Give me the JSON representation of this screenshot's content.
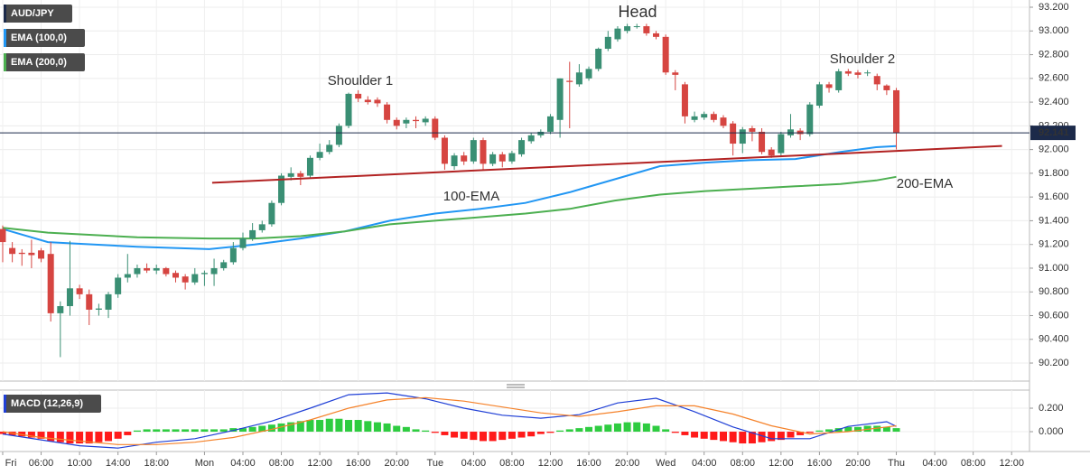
{
  "chart_data": [
    {
      "type": "candlestick",
      "title": "AUD/JPY",
      "up_color": "#3a8f74",
      "down_color": "#d64541",
      "x": [
        0,
        1,
        2,
        3,
        4,
        5,
        6,
        7,
        8,
        9,
        10,
        11,
        12,
        13,
        14,
        15,
        16,
        17,
        18,
        19,
        20,
        21,
        22,
        23,
        24,
        25,
        26,
        27,
        28,
        29,
        30,
        31,
        32,
        33,
        34,
        35,
        36,
        37,
        38,
        39,
        40,
        41,
        42,
        43,
        44,
        45,
        46,
        47,
        48,
        49,
        50,
        51,
        52,
        53,
        54,
        55,
        56,
        57,
        58,
        59,
        60,
        61,
        62,
        63,
        64,
        65,
        66,
        67,
        68,
        69,
        70,
        71,
        72,
        73,
        74,
        75,
        76,
        77,
        78,
        79,
        80,
        81,
        82,
        83,
        84,
        85,
        86,
        87,
        88,
        89,
        90,
        91,
        92,
        93
      ],
      "open": [
        91.33,
        91.17,
        91.13,
        91.13,
        91.15,
        91.12,
        90.62,
        90.68,
        90.83,
        90.78,
        90.65,
        90.65,
        90.78,
        90.92,
        90.95,
        91.0,
        90.98,
        91.0,
        90.96,
        90.93,
        90.88,
        90.95,
        90.95,
        91.0,
        91.05,
        91.17,
        91.25,
        91.32,
        91.37,
        91.55,
        91.77,
        91.8,
        91.78,
        91.93,
        91.98,
        92.04,
        92.2,
        92.47,
        92.42,
        92.42,
        92.38,
        92.25,
        92.22,
        92.25,
        92.23,
        92.26,
        92.1,
        91.86,
        91.95,
        91.9,
        92.08,
        91.88,
        91.96,
        91.9,
        91.96,
        92.07,
        92.12,
        92.15,
        92.25,
        92.58,
        92.55,
        92.6,
        92.68,
        92.85,
        92.93,
        93.0,
        93.04,
        93.04,
        92.98,
        92.95,
        92.65,
        92.55,
        92.25,
        92.27,
        92.3,
        92.27,
        92.22,
        92.05,
        92.18,
        92.15,
        92.0,
        91.97,
        92.12,
        92.16,
        92.13,
        92.37,
        92.55,
        92.5,
        92.66,
        92.65,
        92.65,
        92.62,
        92.54,
        92.5
      ],
      "high": [
        91.36,
        91.22,
        91.16,
        91.24,
        91.17,
        91.22,
        90.72,
        91.23,
        90.86,
        90.82,
        90.7,
        90.8,
        90.95,
        91.12,
        91.03,
        91.04,
        91.03,
        91.01,
        90.98,
        90.95,
        91.0,
        90.98,
        91.08,
        91.07,
        91.22,
        91.3,
        91.38,
        91.4,
        91.57,
        91.8,
        91.85,
        91.82,
        91.95,
        92.05,
        92.08,
        92.22,
        92.48,
        92.5,
        92.45,
        92.44,
        92.4,
        92.27,
        92.27,
        92.28,
        92.28,
        92.28,
        92.12,
        91.97,
        91.98,
        92.1,
        92.1,
        91.98,
        91.98,
        91.99,
        92.1,
        92.14,
        92.17,
        92.3,
        92.6,
        92.74,
        92.72,
        92.7,
        92.86,
        93.0,
        93.04,
        93.06,
        93.06,
        93.06,
        93.0,
        92.97,
        92.67,
        92.57,
        92.32,
        92.32,
        92.32,
        92.29,
        92.24,
        92.19,
        92.2,
        92.18,
        92.02,
        92.15,
        92.3,
        92.18,
        92.4,
        92.57,
        92.57,
        92.68,
        92.68,
        92.67,
        92.67,
        92.64,
        92.55,
        92.52
      ],
      "low": [
        91.05,
        91.05,
        91.02,
        91.0,
        91.05,
        90.55,
        90.25,
        90.6,
        90.74,
        90.52,
        90.6,
        90.58,
        90.75,
        90.88,
        90.92,
        90.96,
        90.95,
        90.93,
        90.88,
        90.82,
        90.86,
        90.85,
        90.85,
        90.98,
        91.03,
        91.15,
        91.23,
        91.3,
        91.35,
        91.53,
        91.74,
        91.7,
        91.76,
        91.91,
        91.96,
        92.02,
        92.18,
        92.4,
        92.38,
        92.36,
        92.22,
        92.17,
        92.18,
        92.18,
        92.2,
        92.08,
        91.83,
        91.83,
        91.87,
        91.88,
        91.83,
        91.86,
        91.85,
        91.88,
        91.94,
        92.05,
        92.1,
        92.13,
        92.1,
        92.18,
        92.53,
        92.58,
        92.66,
        92.83,
        92.91,
        92.98,
        93.02,
        92.96,
        92.93,
        92.63,
        92.5,
        92.22,
        92.23,
        92.25,
        92.23,
        92.18,
        91.95,
        91.97,
        92.07,
        91.96,
        91.93,
        91.95,
        92.1,
        92.08,
        92.11,
        92.35,
        92.48,
        92.48,
        92.62,
        92.6,
        92.62,
        92.5,
        92.46,
        92.0
      ],
      "close": [
        91.22,
        91.12,
        91.12,
        91.11,
        91.08,
        90.62,
        90.68,
        90.83,
        90.78,
        90.65,
        90.66,
        90.78,
        90.92,
        90.95,
        91.0,
        90.98,
        91.0,
        90.95,
        90.92,
        90.88,
        90.95,
        90.96,
        91.0,
        91.05,
        91.17,
        91.25,
        91.32,
        91.37,
        91.55,
        91.78,
        91.8,
        91.77,
        91.93,
        91.98,
        92.04,
        92.2,
        92.47,
        92.43,
        92.4,
        92.39,
        92.25,
        92.2,
        92.25,
        92.24,
        92.26,
        92.1,
        91.88,
        91.95,
        91.9,
        92.08,
        91.88,
        91.96,
        91.9,
        91.97,
        92.08,
        92.12,
        92.15,
        92.28,
        92.6,
        92.57,
        92.65,
        92.68,
        92.85,
        92.95,
        93.02,
        93.04,
        93.04,
        92.98,
        92.95,
        92.65,
        92.63,
        92.28,
        92.28,
        92.3,
        92.25,
        92.2,
        92.05,
        92.17,
        92.15,
        91.98,
        91.95,
        92.13,
        92.17,
        92.13,
        92.38,
        92.55,
        92.52,
        92.66,
        92.64,
        92.63,
        92.65,
        92.55,
        92.5,
        92.141
      ],
      "lines": [
        {
          "name": "EMA (100,0)",
          "color": "#2196f3",
          "x": [
            0,
            4.7,
            14,
            21.5,
            26.2,
            31,
            35.6,
            40.3,
            45,
            49.7,
            54.4,
            59,
            63.7,
            68.4,
            73.1,
            77.8,
            82.5,
            87.2,
            90.9,
            93
          ],
          "values": [
            91.33,
            91.22,
            91.18,
            91.16,
            91.2,
            91.25,
            91.31,
            91.4,
            91.46,
            91.5,
            91.55,
            91.64,
            91.75,
            91.86,
            91.89,
            91.91,
            91.92,
            91.98,
            92.02,
            92.03
          ]
        },
        {
          "name": "EMA (200,0)",
          "color": "#4caf50",
          "x": [
            0,
            4.7,
            14,
            21.5,
            26.2,
            31,
            35.6,
            40.3,
            45,
            49.7,
            54.4,
            59,
            63.7,
            68.4,
            73.1,
            77.8,
            82.5,
            87.2,
            90.9,
            93
          ],
          "values": [
            91.34,
            91.3,
            91.26,
            91.25,
            91.25,
            91.27,
            91.31,
            91.37,
            91.4,
            91.43,
            91.46,
            91.5,
            91.57,
            91.62,
            91.65,
            91.67,
            91.69,
            91.71,
            91.74,
            91.77
          ]
        },
        {
          "color": "#b22222",
          "x": [
            21.8,
            104
          ],
          "values": [
            91.72,
            92.03
          ]
        }
      ],
      "annotations": [
        {
          "text": "Head",
          "color": "#c0392b"
        },
        {
          "text": "Shoulder 1",
          "color": "#c0392b"
        },
        {
          "text": "Shoulder 2",
          "color": "#c0392b"
        },
        {
          "text": "100-EMA",
          "color": "#2196f3"
        },
        {
          "text": "200-EMA",
          "color": "#4caf50"
        }
      ],
      "last_price": {
        "value": 92.141,
        "label": "92.141"
      },
      "xlim": [
        -0.28,
        106.86
      ],
      "ylim": [
        90.048,
        93.261
      ],
      "yticks": [
        {
          "value": 90.2,
          "label": "90.200"
        },
        {
          "value": 90.4,
          "label": "90.400"
        },
        {
          "value": 90.6,
          "label": "90.600"
        },
        {
          "value": 90.8,
          "label": "90.800"
        },
        {
          "value": 91.0,
          "label": "91.000"
        },
        {
          "value": 91.2,
          "label": "91.200"
        },
        {
          "value": 91.4,
          "label": "91.400"
        },
        {
          "value": 91.6,
          "label": "91.600"
        },
        {
          "value": 91.8,
          "label": "91.800"
        },
        {
          "value": 92.0,
          "label": "92.000"
        },
        {
          "value": 92.2,
          "label": "92.200"
        },
        {
          "value": 92.4,
          "label": "92.400"
        },
        {
          "value": 92.6,
          "label": "92.600"
        },
        {
          "value": 92.8,
          "label": "92.800"
        },
        {
          "value": 93.0,
          "label": "93.000"
        },
        {
          "value": 93.2,
          "label": "93.200"
        }
      ],
      "xticks": [
        {
          "value": 0,
          "label": "Fri"
        },
        {
          "value": 4,
          "label": "06:00"
        },
        {
          "value": 8,
          "label": "10:00"
        },
        {
          "value": 12,
          "label": "14:00"
        },
        {
          "value": 16,
          "label": "18:00"
        },
        {
          "value": 21,
          "label": "Mon"
        },
        {
          "value": 25,
          "label": "04:00"
        },
        {
          "value": 29,
          "label": "08:00"
        },
        {
          "value": 33,
          "label": "12:00"
        },
        {
          "value": 37,
          "label": "16:00"
        },
        {
          "value": 41,
          "label": "20:00"
        },
        {
          "value": 45,
          "label": "Tue"
        },
        {
          "value": 49,
          "label": "04:00"
        },
        {
          "value": 53,
          "label": "08:00"
        },
        {
          "value": 57,
          "label": "12:00"
        },
        {
          "value": 61,
          "label": "16:00"
        },
        {
          "value": 65,
          "label": "20:00"
        },
        {
          "value": 69,
          "label": "Wed"
        },
        {
          "value": 73,
          "label": "04:00"
        },
        {
          "value": 77,
          "label": "08:00"
        },
        {
          "value": 81,
          "label": "12:00"
        },
        {
          "value": 85,
          "label": "16:00"
        },
        {
          "value": 89,
          "label": "20:00"
        },
        {
          "value": 93,
          "label": "Thu"
        },
        {
          "value": 97,
          "label": "04:00"
        },
        {
          "value": 101,
          "label": "08:00"
        },
        {
          "value": 105,
          "label": "12:00"
        }
      ],
      "grid": true
    },
    {
      "type": "macd",
      "title": "MACD (12,26,9)",
      "histogram": {
        "up_color": "#2ecc40",
        "down_color": "#ff1a1a",
        "values": [
          -0.02,
          -0.03,
          -0.04,
          -0.05,
          -0.06,
          -0.08,
          -0.09,
          -0.1,
          -0.1,
          -0.1,
          -0.09,
          -0.08,
          -0.06,
          -0.03,
          0.01,
          0.02,
          0.02,
          0.02,
          0.02,
          0.02,
          0.02,
          0.02,
          0.02,
          0.02,
          0.03,
          0.03,
          0.04,
          0.05,
          0.06,
          0.07,
          0.08,
          0.09,
          0.1,
          0.1,
          0.11,
          0.11,
          0.1,
          0.1,
          0.09,
          0.08,
          0.07,
          0.05,
          0.04,
          0.02,
          0.01,
          -0.01,
          -0.03,
          -0.05,
          -0.06,
          -0.07,
          -0.08,
          -0.08,
          -0.07,
          -0.06,
          -0.05,
          -0.04,
          -0.02,
          -0.01,
          0.01,
          0.02,
          0.03,
          0.04,
          0.05,
          0.06,
          0.07,
          0.08,
          0.08,
          0.07,
          0.05,
          0.02,
          -0.01,
          -0.03,
          -0.05,
          -0.06,
          -0.07,
          -0.08,
          -0.09,
          -0.1,
          -0.1,
          -0.09,
          -0.08,
          -0.07,
          -0.05,
          -0.03,
          -0.01,
          0.01,
          0.02,
          0.03,
          0.04,
          0.04,
          0.05,
          0.05,
          0.04,
          0.03
        ]
      },
      "lines": [
        {
          "color": "#1f3fd6",
          "x": [
            0,
            4,
            8,
            12,
            16,
            20,
            24,
            28,
            32,
            36,
            40,
            44,
            48,
            52,
            56,
            60,
            64,
            68,
            72,
            76,
            80,
            84,
            88,
            92,
            93
          ],
          "values": [
            -0.02,
            -0.07,
            -0.12,
            -0.14,
            -0.09,
            -0.06,
            0.01,
            0.09,
            0.2,
            0.315,
            0.33,
            0.28,
            0.2,
            0.14,
            0.115,
            0.145,
            0.245,
            0.285,
            0.17,
            0.04,
            -0.06,
            -0.06,
            0.045,
            0.085,
            0.045
          ]
        },
        {
          "color": "#f5822a",
          "x": [
            0,
            4,
            8,
            12,
            16,
            20,
            24,
            28,
            32,
            36,
            40,
            44,
            48,
            52,
            56,
            60,
            64,
            68,
            72,
            76,
            80,
            84,
            88,
            92,
            93
          ],
          "values": [
            0.0,
            -0.05,
            -0.08,
            -0.11,
            -0.11,
            -0.09,
            -0.05,
            0.02,
            0.1,
            0.2,
            0.27,
            0.29,
            0.26,
            0.21,
            0.16,
            0.13,
            0.17,
            0.22,
            0.22,
            0.15,
            0.05,
            -0.02,
            0.0,
            0.04,
            0.05
          ]
        }
      ],
      "ylim": [
        -0.169,
        0.354
      ],
      "yticks": [
        {
          "value": 0.2,
          "label": "0.200"
        },
        {
          "value": 0,
          "label": "0.000"
        }
      ]
    }
  ]
}
